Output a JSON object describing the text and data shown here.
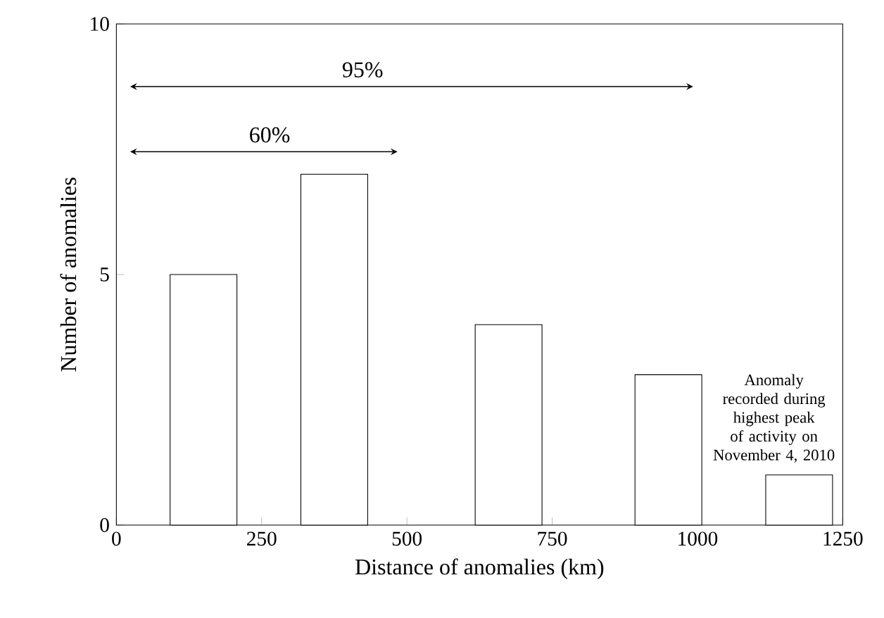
{
  "chart_data": {
    "type": "bar",
    "xlabel": "Distance of anomalies (km)",
    "ylabel": "Number of anomalies",
    "x": [
      150,
      375,
      675,
      950,
      1175
    ],
    "xlim": [
      0,
      1250
    ],
    "xticks": [
      0,
      250,
      500,
      750,
      1000,
      1250
    ],
    "ylim": [
      0,
      10
    ],
    "yticks": [
      0,
      5,
      10
    ],
    "series": [
      {
        "color": "#000000",
        "values": [
          5,
          7,
          4,
          3,
          1
        ]
      }
    ],
    "annotations": [
      "95%",
      "60%",
      "Anomaly recorded during highest peak of activity on November 4, 2010"
    ]
  }
}
